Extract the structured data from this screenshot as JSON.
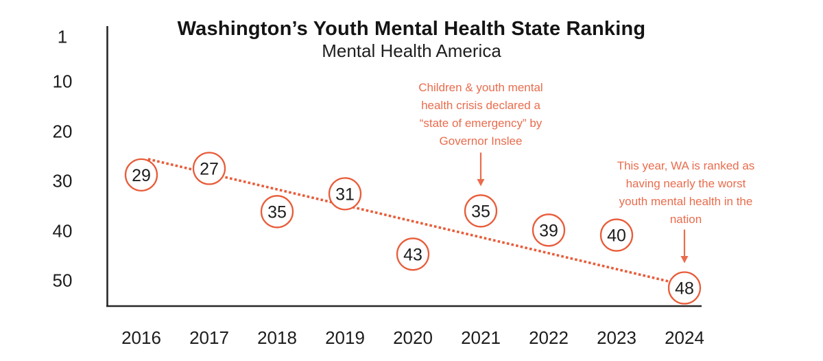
{
  "chart_data": {
    "type": "scatter",
    "title": "Washington’s Youth Mental Health State Ranking",
    "subtitle": "Mental Health America",
    "x": [
      2016,
      2017,
      2018,
      2019,
      2020,
      2021,
      2022,
      2023,
      2024
    ],
    "values": [
      29,
      27,
      35,
      31,
      43,
      35,
      39,
      40,
      48
    ],
    "xlabel": "",
    "ylabel": "",
    "y_axis_ticks": [
      1,
      10,
      20,
      30,
      40,
      50
    ],
    "ylim": [
      1,
      50
    ],
    "y_axis_inverted": true,
    "grid": false,
    "legend": "none",
    "marker": "outlined-circle-with-value-label",
    "trendline": {
      "style": "dotted",
      "start": {
        "year": 2016.1,
        "value": 25.4
      },
      "end": {
        "year": 2023.8,
        "value": 50.1
      }
    },
    "annotations": [
      {
        "text": "Children & youth mental\nhealth crisis declared a\n“state of emergency” by\nGovernor Inslee",
        "target_year": 2021,
        "target_value": 35
      },
      {
        "text": "This year, WA is ranked as\nhaving nearly the worst\nyouth mental health in the\nnation",
        "target_year": 2024,
        "target_value": 48
      }
    ],
    "colors": {
      "accent": "#E85C39",
      "accent_text": "#E96C4D",
      "axis": "#262626",
      "value_text": "#1D1D1F",
      "label_text": "#1C1C1C",
      "background": "#FFFFFF"
    }
  }
}
